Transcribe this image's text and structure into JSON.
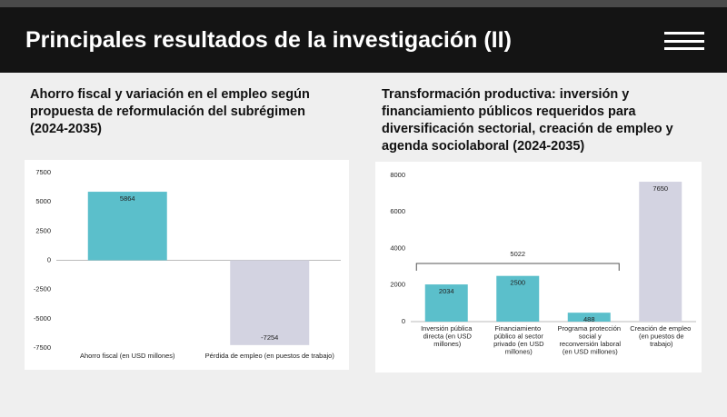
{
  "header": {
    "title": "Principales resultados de la investigación (II)"
  },
  "chart_data": [
    {
      "type": "bar",
      "title": "Ahorro fiscal y variación en el empleo según propuesta de reformulación del subrégimen (2024-2035)",
      "categories": [
        "Ahorro fiscal  (en USD millones)",
        "Pérdida de empleo  (en puestos de trabajo)"
      ],
      "values": [
        5864,
        -7254
      ],
      "colors": [
        "#5bbfcb",
        "#d3d3e1"
      ],
      "ylim": [
        -7500,
        7500
      ],
      "yticks": [
        -7500,
        -5000,
        -2500,
        0,
        2500,
        5000,
        7500
      ],
      "grid": false
    },
    {
      "type": "bar",
      "title": "Transformación productiva: inversión y financiamiento públicos requeridos para diversificación sectorial, creación de empleo y agenda sociolaboral (2024-2035)",
      "categories": [
        "Inversión pública directa (en USD millones)",
        "Financiamiento público al sector privado (en USD millones)",
        "Programa protección social y reconversión laboral (en USD millones)",
        "Creación de empleo (en puestos de trabajo)"
      ],
      "values": [
        2034,
        2500,
        488,
        7650
      ],
      "colors": [
        "#5bbfcb",
        "#5bbfcb",
        "#5bbfcb",
        "#d3d3e1"
      ],
      "bracket_total": 5022,
      "ylim": [
        0,
        8000
      ],
      "yticks": [
        0,
        2000,
        4000,
        6000,
        8000
      ],
      "grid": false
    }
  ]
}
